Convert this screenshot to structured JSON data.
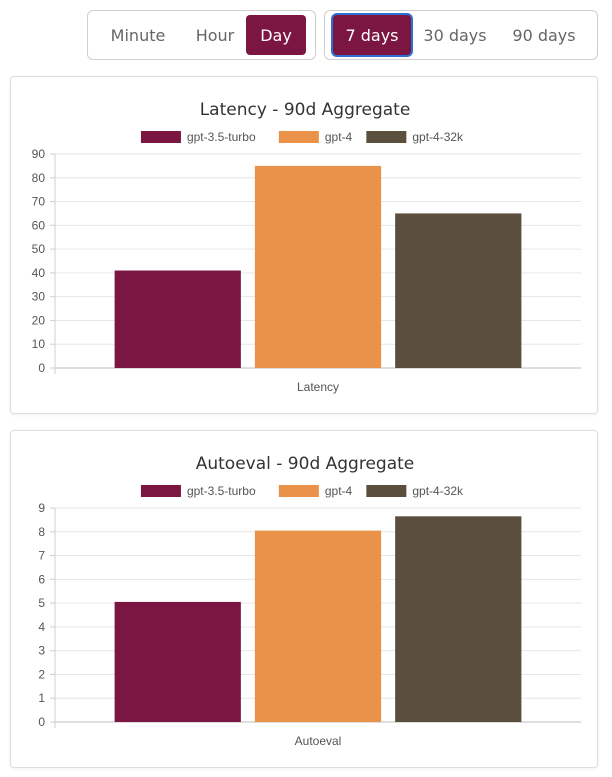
{
  "granularity": {
    "options": [
      "Minute",
      "Hour",
      "Day"
    ],
    "selected": "Day"
  },
  "range": {
    "options": [
      "7 days",
      "30 days",
      "90 days"
    ],
    "selected": "7 days"
  },
  "colors": {
    "gpt-3.5-turbo": "#7b1542",
    "gpt-4": "#eb924a",
    "gpt-4-32k": "#5a4e3c",
    "accent": "#7b1542",
    "focus_ring": "#2f6fd1"
  },
  "chart_data": [
    {
      "type": "bar",
      "title": "Latency - 90d Aggregate",
      "categories": [
        "Latency"
      ],
      "series": [
        {
          "name": "gpt-3.5-turbo",
          "values": [
            41
          ]
        },
        {
          "name": "gpt-4",
          "values": [
            85
          ]
        },
        {
          "name": "gpt-4-32k",
          "values": [
            65
          ]
        }
      ],
      "ylim": [
        0,
        90
      ],
      "yticks": [
        0,
        10,
        20,
        30,
        40,
        50,
        60,
        70,
        80,
        90
      ],
      "xlabel": "",
      "ylabel": "",
      "grid": true,
      "legend": "top-center"
    },
    {
      "type": "bar",
      "title": "Autoeval - 90d Aggregate",
      "categories": [
        "Autoeval"
      ],
      "series": [
        {
          "name": "gpt-3.5-turbo",
          "values": [
            5.05
          ]
        },
        {
          "name": "gpt-4",
          "values": [
            8.05
          ]
        },
        {
          "name": "gpt-4-32k",
          "values": [
            8.65
          ]
        }
      ],
      "ylim": [
        0,
        9
      ],
      "yticks": [
        0,
        1,
        2,
        3,
        4,
        5,
        6,
        7,
        8,
        9
      ],
      "xlabel": "",
      "ylabel": "",
      "grid": true,
      "legend": "top-center"
    }
  ]
}
